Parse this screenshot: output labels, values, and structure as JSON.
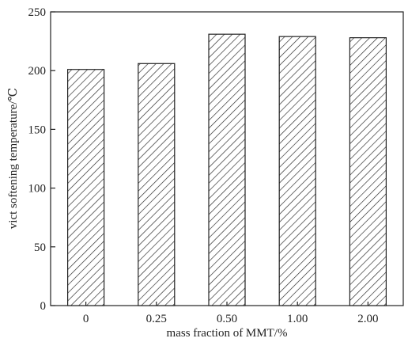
{
  "chart_data": {
    "type": "bar",
    "categories": [
      "0",
      "0.25",
      "0.50",
      "1.00",
      "2.00"
    ],
    "values": [
      201,
      206,
      231,
      229,
      228
    ],
    "xlabel": "mass fraction of MMT/%",
    "ylabel": "vict softening temperature/℃",
    "ylim": [
      0,
      250
    ],
    "yticks": [
      0,
      50,
      100,
      150,
      200,
      250
    ],
    "grid": false,
    "bar_fill": "diagonal-hatch"
  }
}
